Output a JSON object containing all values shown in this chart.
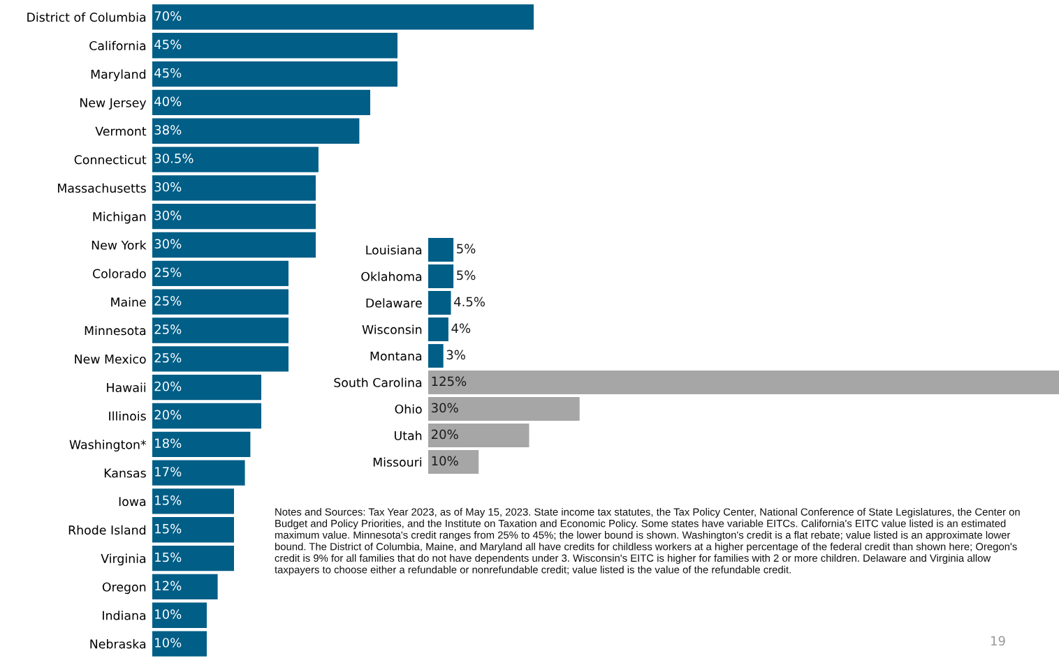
{
  "chart_data": [
    {
      "type": "bar",
      "orientation": "horizontal",
      "categories": [
        "District of Columbia",
        "California",
        "Maryland",
        "New Jersey",
        "Vermont",
        "Connecticut",
        "Massachusetts",
        "Michigan",
        "New York",
        "Colorado",
        "Maine",
        "Minnesota",
        "New Mexico",
        "Hawaii",
        "Illinois",
        "Washington*",
        "Kansas",
        "Iowa",
        "Rhode Island",
        "Virginia",
        "Oregon",
        "Indiana",
        "Nebraska"
      ],
      "values": [
        70,
        45,
        45,
        40,
        38,
        30.5,
        30,
        30,
        30,
        25,
        25,
        25,
        25,
        20,
        20,
        18,
        17,
        15,
        15,
        15,
        12,
        10,
        10
      ],
      "value_labels": [
        "70%",
        "45%",
        "45%",
        "40%",
        "38%",
        "30.5%",
        "30%",
        "30%",
        "30%",
        "25%",
        "25%",
        "25%",
        "25%",
        "20%",
        "20%",
        "18%",
        "17%",
        "15%",
        "15%",
        "15%",
        "12%",
        "10%",
        "10%"
      ],
      "color": "#005e87",
      "xlim": [
        0,
        70
      ],
      "tick_labels": "y",
      "grid": false,
      "legend": false
    },
    {
      "type": "bar",
      "orientation": "horizontal",
      "categories": [
        "Louisiana",
        "Oklahoma",
        "Delaware",
        "Wisconsin",
        "Montana",
        "South Carolina",
        "Ohio",
        "Utah",
        "Missouri"
      ],
      "values": [
        5,
        5,
        4.5,
        4,
        3,
        125,
        30,
        20,
        10
      ],
      "value_labels": [
        "5%",
        "5%",
        "4.5%",
        "4%",
        "3%",
        "125%",
        "30%",
        "20%",
        "10%"
      ],
      "colors": [
        "#005e87",
        "#005e87",
        "#005e87",
        "#005e87",
        "#005e87",
        "#a6a6a6",
        "#a6a6a6",
        "#a6a6a6",
        "#a6a6a6"
      ],
      "xlim": [
        0,
        125
      ],
      "tick_labels": "y",
      "grid": false,
      "legend": false,
      "annotations": [
        "Notes and Sources: Tax Year 2023, as of May 15, 2023. State income tax statutes, the Tax Policy Center, National Conference of State Legislatures, the Center on Budget and Policy Priorities, and the Institute on Taxation and Economic Policy. Some states have variable EITCs. California's EITC value listed is an estimated maximum value. Minnesota's credit ranges from 25% to 45%; the lower bound is shown. Washington's credit is a flat rebate; value listed is an approximate lower bound. The District of Columbia, Maine, and Maryland all have credits for childless workers at a higher percentage of the federal credit than shown here; Oregon's credit is 9% for all families that do not have dependents under 3. Wisconsin's EITC is higher for families with 2 or more children. Delaware and Virginia allow taxpayers to choose either a refundable or nonrefundable credit; value listed is the value of the refundable credit.",
        "19"
      ]
    }
  ]
}
